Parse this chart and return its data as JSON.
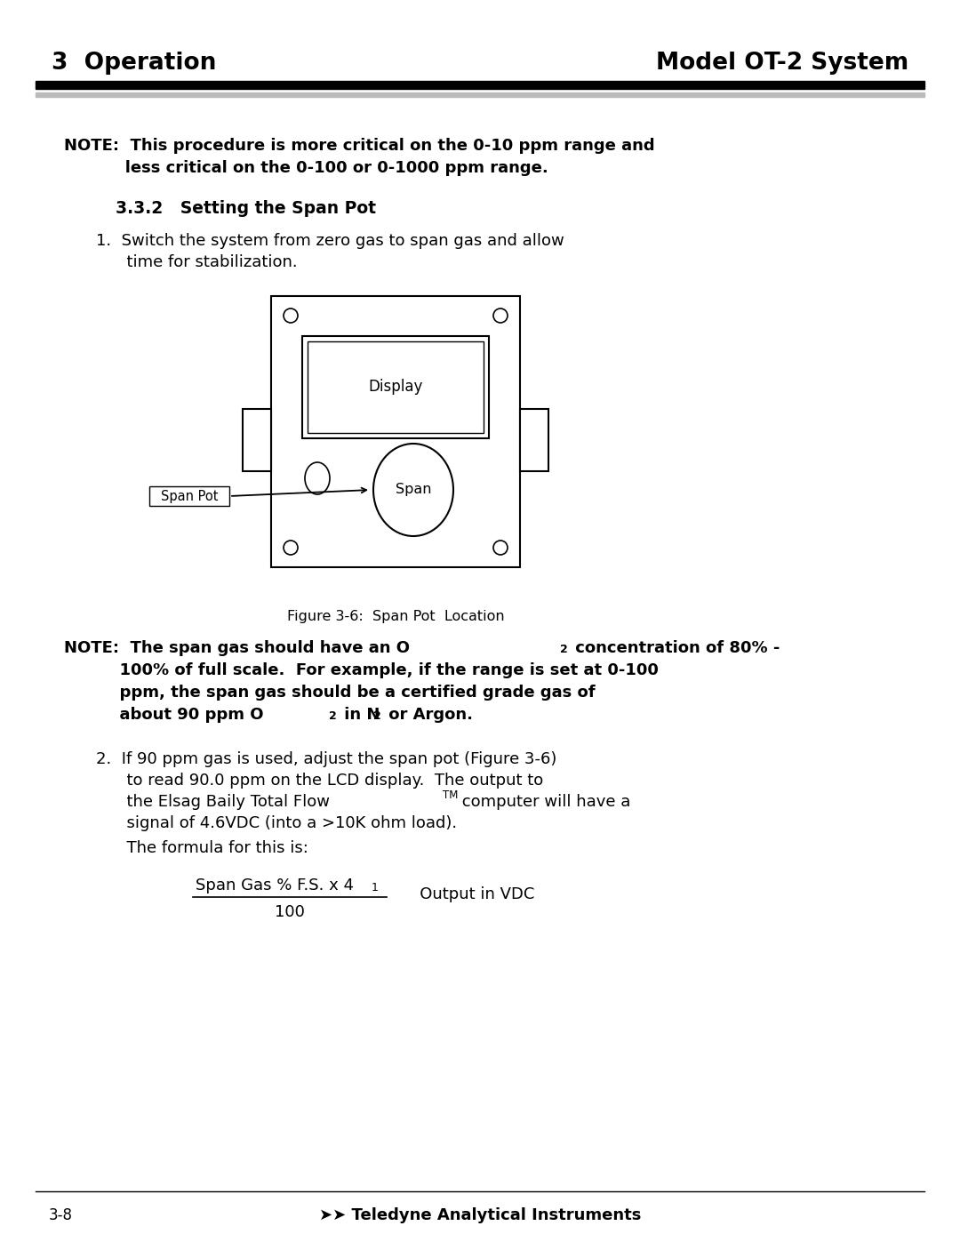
{
  "bg_color": "#ffffff",
  "header_left": "3  Operation",
  "header_right": "Model OT-2 System",
  "note1_line1": "NOTE:  This procedure is more critical on the 0-10 ppm range and",
  "note1_line2": "           less critical on the 0-100 or 0-1000 ppm range.",
  "section": "3.3.2   Setting the Span Pot",
  "step1_line1": "1.  Switch the system from zero gas to span gas and allow",
  "step1_line2": "      time for stabilization.",
  "fig_caption": "Figure 3-6:  Span Pot  Location",
  "note2_part1": "NOTE:  The span gas should have an O",
  "note2_part2": " concentration of 80% -",
  "note2_line2": "          100% of full scale.  For example, if the range is set at 0-100",
  "note2_line3": "          ppm, the span gas should be a certified grade gas of",
  "note2_line4a": "          about 90 ppm O",
  "note2_line4b": " in N",
  "note2_line4c": " or Argon.",
  "step2_line1": "2.  If 90 ppm gas is used, adjust the span pot (Figure 3-6)",
  "step2_line2": "      to read 90.0 ppm on the LCD display.  The output to",
  "step2_line3a": "      the Elsag Baily Total Flow",
  "step2_tm": "TM",
  "step2_line3b": " computer will have a",
  "step2_line4": "      signal of 4.6VDC (into a >10K ohm load).",
  "formula_intro": "      The formula for this is:",
  "formula_num": "Span Gas % F.S. x 4",
  "formula_sub1": "1",
  "formula_denom": "100",
  "formula_result": "   Output in VDC",
  "footer_num": "3-8",
  "footer_text": "➤➤ Teledyne Analytical Instruments"
}
